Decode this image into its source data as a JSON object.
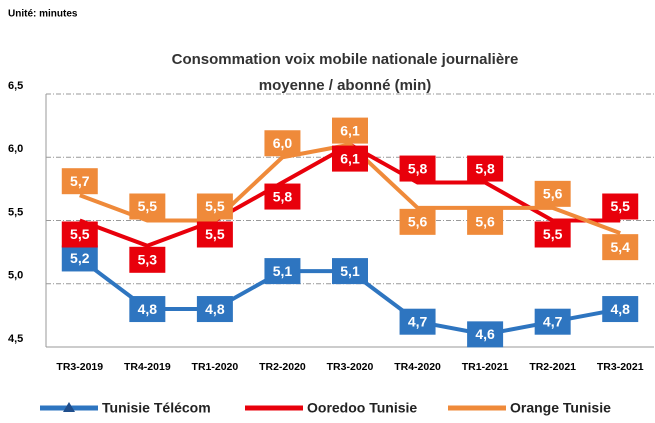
{
  "chart_data": {
    "type": "line",
    "unit_note": "Unité: minutes",
    "title": [
      "Consommation voix mobile  nationale journalière",
      "moyenne / abonné (min)"
    ],
    "categories": [
      "TR3-2019",
      "TR4-2019",
      "TR1-2020",
      "TR2-2020",
      "TR3-2020",
      "TR4-2020",
      "TR1-2021",
      "TR2-2021",
      "TR3-2021"
    ],
    "series": [
      {
        "name": "Tunisie Télécom",
        "color": "#2e75c0",
        "marker": "triangle",
        "values": [
          5.2,
          4.8,
          4.8,
          5.1,
          5.1,
          4.7,
          4.6,
          4.7,
          4.8
        ],
        "value_labels": [
          "5,2",
          "4,8",
          "4,8",
          "5,1",
          "5,1",
          "4,7",
          "4,6",
          "4,7",
          "4,8"
        ]
      },
      {
        "name": "Ooredoo Tunisie",
        "color": "#e8000b",
        "values": [
          5.5,
          5.3,
          5.5,
          5.8,
          6.1,
          5.8,
          5.8,
          5.5,
          5.5
        ],
        "value_labels": [
          "5,5",
          "5,3",
          "5,5",
          "5,8",
          "6,1",
          "5,8",
          "5,8",
          "5,5",
          "5,5"
        ]
      },
      {
        "name": "Orange Tunisie",
        "color": "#ef8a3a",
        "values": [
          5.7,
          5.5,
          5.5,
          6.0,
          6.1,
          5.6,
          5.6,
          5.6,
          5.4
        ],
        "value_labels": [
          "5,7",
          "5,5",
          "5,5",
          "6,0",
          "6,1",
          "5,6",
          "5,6",
          "5,6",
          "5,4"
        ]
      }
    ],
    "ylim": [
      4.5,
      6.5
    ],
    "yticks": [
      {
        "value": 4.5,
        "label": "4,5"
      },
      {
        "value": 5.0,
        "label": "5,0"
      },
      {
        "value": 5.5,
        "label": "5,5"
      },
      {
        "value": 6.0,
        "label": "6,0"
      },
      {
        "value": 6.5,
        "label": "6,5"
      }
    ],
    "grid": true,
    "legend": "bottom"
  }
}
